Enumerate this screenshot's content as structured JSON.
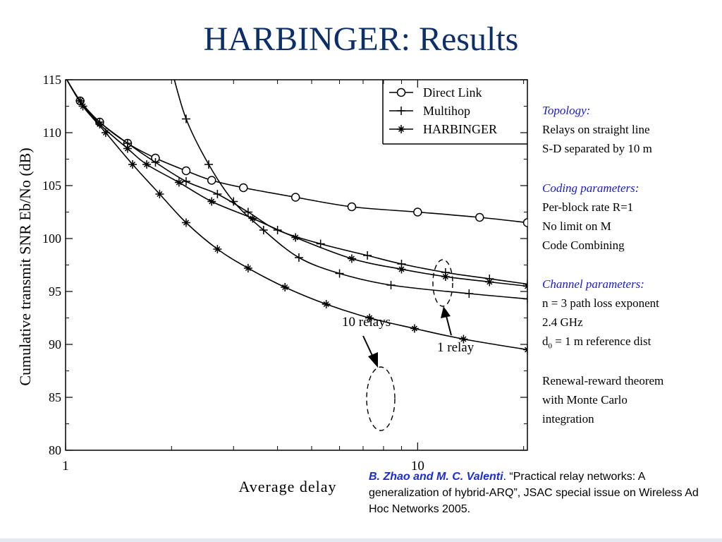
{
  "slide": {
    "title": "HARBINGER: Results"
  },
  "chart_data": {
    "type": "line",
    "xscale": "log",
    "xlim": [
      1,
      20.5
    ],
    "ylim": [
      80,
      115
    ],
    "xlabel": "Average delay",
    "ylabel": "Cumulative transmit SNR Eb/No (dB)",
    "x_ticks": [
      1,
      10
    ],
    "y_ticks": [
      80,
      85,
      90,
      95,
      100,
      105,
      110,
      115
    ],
    "legend_position": "top-right",
    "series": [
      {
        "name": "Direct Link",
        "marker": "circle",
        "group": "1 relay",
        "x": [
          1.0,
          1.1,
          1.25,
          1.5,
          1.8,
          2.2,
          2.6,
          3.2,
          4.5,
          6.5,
          10,
          15,
          20.5
        ],
        "y": [
          115.2,
          113.0,
          111.0,
          109.0,
          107.6,
          106.4,
          105.5,
          104.8,
          103.9,
          103.0,
          102.5,
          102.0,
          101.5
        ]
      },
      {
        "name": "Multihop",
        "marker": "plus",
        "group": "1 relay",
        "x": [
          1.0,
          1.1,
          1.25,
          1.5,
          1.8,
          2.2,
          2.7,
          3.3,
          4.0,
          5.3,
          7.2,
          9.0,
          12.0,
          16.0,
          20.5
        ],
        "y": [
          115.2,
          113.0,
          111.0,
          109.0,
          107.2,
          105.4,
          104.2,
          102.5,
          100.8,
          99.5,
          98.4,
          97.6,
          96.8,
          96.2,
          95.7
        ]
      },
      {
        "name": "HARBINGER",
        "marker": "star",
        "group": "1 relay",
        "x": [
          1.0,
          1.1,
          1.25,
          1.5,
          1.7,
          2.1,
          2.6,
          3.4,
          4.5,
          6.5,
          9.0,
          12.0,
          16.0,
          20.5
        ],
        "y": [
          115.2,
          113.0,
          110.8,
          108.5,
          107.0,
          105.3,
          103.5,
          101.9,
          100.1,
          98.1,
          97.1,
          96.4,
          95.9,
          95.5
        ]
      },
      {
        "name": "Multihop",
        "marker": "plus",
        "group": "10 relays",
        "x": [
          2.0,
          2.2,
          2.55,
          3.0,
          3.65,
          4.6,
          6.0,
          8.4,
          14.0,
          20.5
        ],
        "y": [
          116.0,
          111.3,
          107.0,
          103.5,
          100.8,
          98.2,
          96.7,
          95.6,
          94.8,
          94.3
        ]
      },
      {
        "name": "HARBINGER",
        "marker": "star",
        "group": "10 relays",
        "x": [
          1.0,
          1.12,
          1.3,
          1.55,
          1.85,
          2.2,
          2.7,
          3.3,
          4.2,
          5.5,
          7.3,
          9.8,
          13.5,
          20.5
        ],
        "y": [
          115.2,
          112.5,
          110.0,
          107.0,
          104.2,
          101.5,
          99.0,
          97.2,
          95.4,
          93.8,
          92.5,
          91.5,
          90.5,
          89.5
        ]
      }
    ],
    "annotations": [
      "10 relays",
      "1 relay"
    ]
  },
  "sidebar": {
    "topology_header": "Topology:",
    "topology_line1": "Relays on straight line",
    "topology_line2": "S-D separated by 10 m",
    "coding_header": "Coding parameters:",
    "coding_line1": "Per-block rate R=1",
    "coding_line2": "No limit on M",
    "coding_line3": "Code Combining",
    "channel_header": "Channel parameters:",
    "channel_line1": "n = 3 path loss exponent",
    "channel_line2": "2.4 GHz",
    "channel_line3_sym": "d",
    "channel_line3_sub": "0",
    "channel_line3_rest": " = 1 m reference dist",
    "renewal_line1": "Renewal-reward theorem",
    "renewal_line2": "with Monte Carlo",
    "renewal_line3": "integration"
  },
  "citation": {
    "authors": "B. Zhao and M. C. Valenti",
    "text": ". “Practical relay networks: A generalization of hybrid-ARQ”, JSAC special issue on Wireless Ad Hoc Networks 2005."
  }
}
